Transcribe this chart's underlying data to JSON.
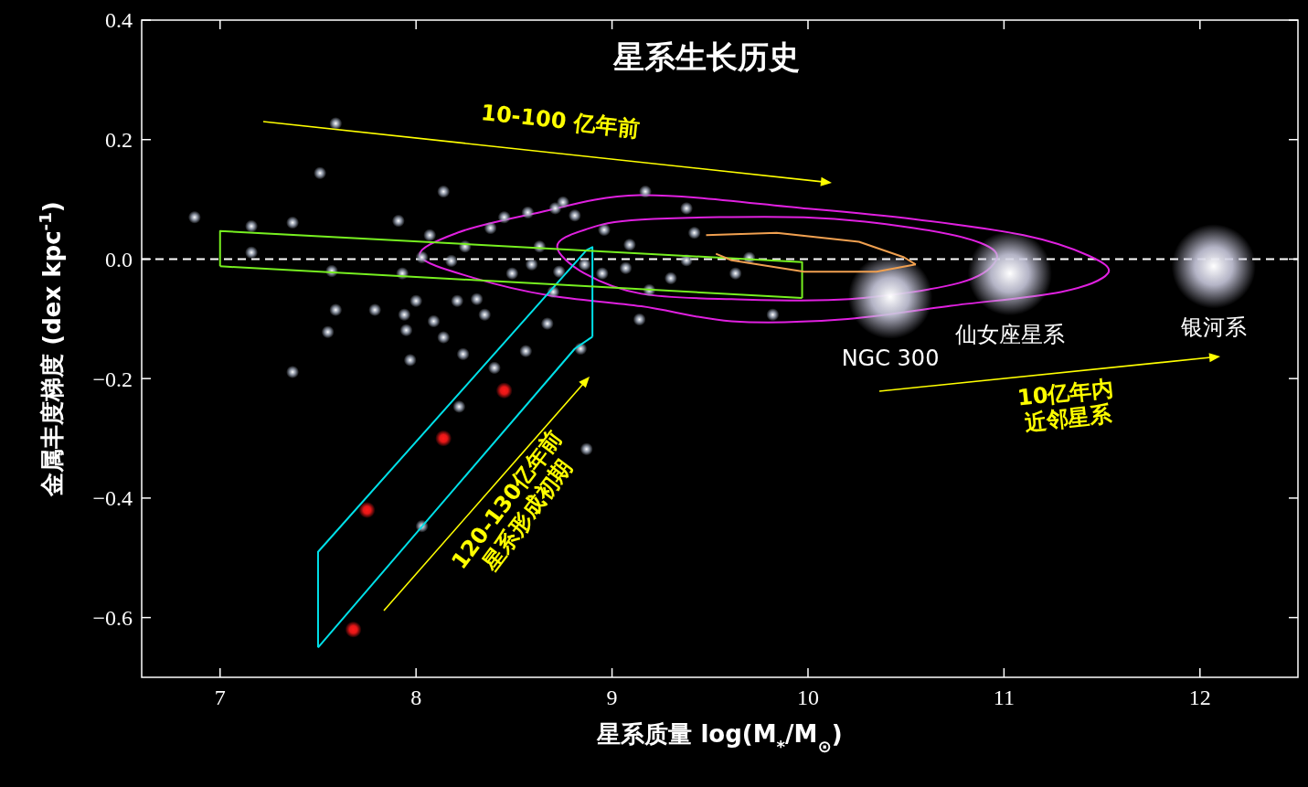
{
  "chart_data": {
    "type": "scatter",
    "title": "星系生长历史",
    "xlabel": "星系质量 log(M$_{*}$/M$_{⊙}$)",
    "ylabel": "金属丰度梯度 (dex kpc$^{-1}$)",
    "xlim": [
      6.6,
      12.5
    ],
    "ylim": [
      -0.7,
      0.4
    ],
    "xticks": [
      7,
      8,
      9,
      10,
      11,
      12
    ],
    "yticks": [
      {
        "value": -0.6,
        "label": "−0.6"
      },
      {
        "value": -0.4,
        "label": "−0.4"
      },
      {
        "value": -0.2,
        "label": "−0.2"
      },
      {
        "value": 0,
        "label": "0.0"
      },
      0.2,
      0.4
    ],
    "grid": false,
    "marker": "circle",
    "ref_lines": [
      {
        "axis": "y",
        "value": 0,
        "color": "#ffffff",
        "line_style": "dashed"
      }
    ],
    "series": [
      {
        "color": "#9aa3b4",
        "x": [
          6.87,
          7.16,
          7.37,
          7.51,
          7.59,
          7.57,
          7.59,
          7.55,
          7.37,
          7.91,
          8.14,
          8.03,
          8.07,
          8.18,
          7.93,
          7.94,
          7.95,
          8.0,
          8.09,
          8.21,
          8.31,
          8.25,
          8.38,
          8.45,
          8.57,
          8.71,
          8.75,
          8.81,
          8.96,
          8.63,
          8.49,
          8.59,
          8.73,
          8.7,
          8.86,
          8.95,
          9.07,
          9.09,
          9.17,
          9.38,
          9.42,
          9.38,
          9.3,
          9.63,
          9.7,
          9.19,
          9.14,
          9.82,
          8.56,
          8.4,
          8.24,
          8.22,
          8.84,
          8.87,
          8.03,
          7.97,
          8.67,
          8.35,
          8.14,
          7.79,
          7.16
        ],
        "values": [
          0.07,
          0.055,
          0.061,
          0.144,
          0.227,
          -0.02,
          -0.085,
          -0.122,
          -0.189,
          0.064,
          0.113,
          0.003,
          0.04,
          -0.003,
          -0.024,
          -0.093,
          -0.119,
          -0.07,
          -0.104,
          -0.07,
          -0.067,
          0.021,
          0.052,
          0.07,
          0.078,
          0.085,
          0.095,
          0.073,
          0.049,
          0.021,
          -0.024,
          -0.009,
          -0.021,
          -0.055,
          -0.009,
          -0.024,
          -0.015,
          0.024,
          0.113,
          0.085,
          0.044,
          -0.002,
          -0.032,
          -0.024,
          0.002,
          -0.052,
          -0.101,
          -0.093,
          -0.154,
          -0.182,
          -0.159,
          -0.247,
          -0.15,
          -0.318,
          -0.447,
          -0.169,
          -0.108,
          -0.093,
          -0.131,
          -0.085,
          0.011
        ]
      },
      {
        "color": "#ff1a1a",
        "x": [
          7.68,
          7.75,
          8.14,
          8.45
        ],
        "values": [
          -0.62,
          -0.42,
          -0.3,
          -0.22
        ]
      },
      {
        "color": "#c8c8dc",
        "x": [
          10.42,
          11.03,
          12.07
        ],
        "values": [
          -0.063,
          -0.024,
          -0.012
        ]
      },
      {
        "type": "line",
        "marker": "none",
        "color": "#00e0e8",
        "x": [
          7.5,
          7.5,
          8.87,
          8.9,
          8.9
        ],
        "values": [
          -0.65,
          -0.49,
          0.015,
          0.02,
          -0.13
        ]
      },
      {
        "type": "line",
        "marker": "none",
        "color": "#00e0e8",
        "x": [
          7.5,
          8.81,
          8.9
        ],
        "values": [
          -0.65,
          -0.15,
          -0.13
        ]
      },
      {
        "type": "line",
        "marker": "none",
        "color": "#77f020",
        "x": [
          7,
          7,
          9.97,
          9.97
        ],
        "values": [
          -0.012,
          0.047,
          -0.005,
          -0.065
        ]
      },
      {
        "type": "line",
        "marker": "none",
        "color": "#77f020",
        "x": [
          7,
          9.97
        ],
        "values": [
          -0.012,
          -0.065
        ]
      },
      {
        "type": "line",
        "marker": "none",
        "color": "#f0a050",
        "x": [
          9.48,
          9.84,
          10.26,
          10.49,
          10.55
        ],
        "values": [
          0.04,
          0.044,
          0.029,
          0.003,
          -0.009
        ]
      },
      {
        "type": "line",
        "marker": "none",
        "color": "#f0a050",
        "x": [
          9.53,
          9.61,
          9.98,
          10.35,
          10.55
        ],
        "values": [
          0.009,
          -0.002,
          -0.021,
          -0.021,
          -0.009
        ]
      }
    ],
    "annotations": [
      "10-100 亿年前",
      "120-130亿年前星系形成初期",
      "10亿年内近邻星系",
      {
        "text": "NGC 300",
        "x": 10.42,
        "y": -0.063
      },
      {
        "text": "仙女座星系",
        "x": 11.03,
        "y": -0.024
      },
      {
        "text": "银河系",
        "x": 12.07,
        "y": -0.012
      }
    ]
  }
}
